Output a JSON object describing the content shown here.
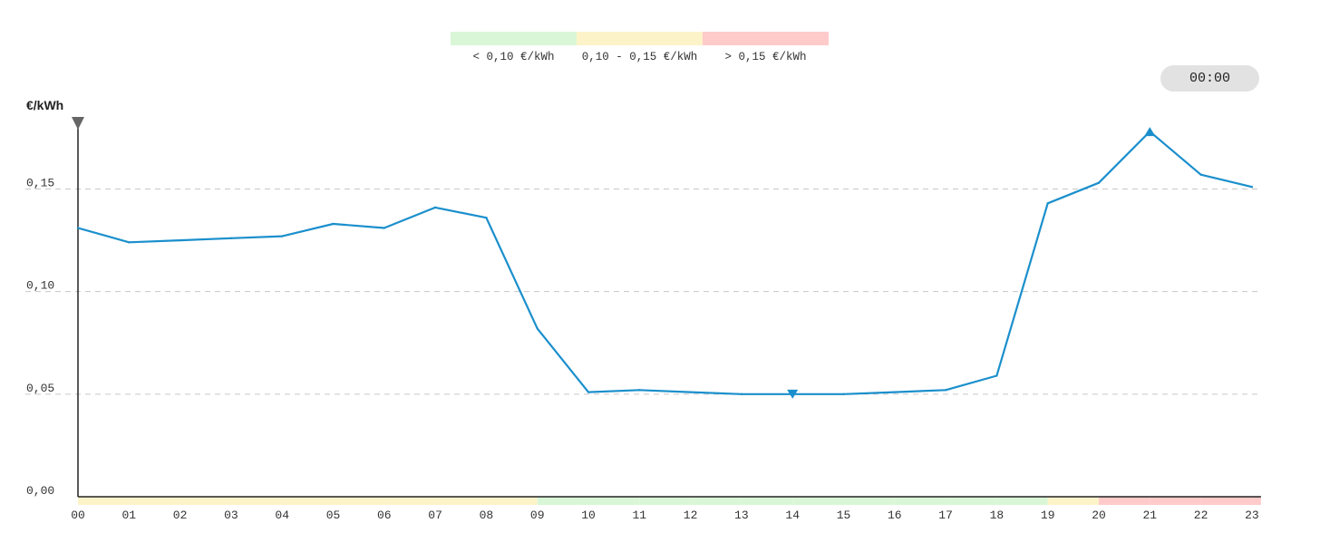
{
  "legend": [
    {
      "label": "< 0,10 €/kWh",
      "color": "#d9f7d6"
    },
    {
      "label": "0,10 - 0,15 €/kWh",
      "color": "#fdf3c9"
    },
    {
      "label": "> 0,15 €/kWh",
      "color": "#ffcaca"
    }
  ],
  "time_selector": {
    "value": "00:00"
  },
  "chart_data": {
    "type": "line",
    "title": "",
    "ylabel": "€/kWh",
    "xlabel": "",
    "ylim": [
      0,
      0.18
    ],
    "yticks": [
      0,
      0.05,
      0.1,
      0.15
    ],
    "ytick_labels": [
      "0,00",
      "0,05",
      "0,10",
      "0,15"
    ],
    "x": [
      "00",
      "01",
      "02",
      "03",
      "04",
      "05",
      "06",
      "07",
      "08",
      "09",
      "10",
      "11",
      "12",
      "13",
      "14",
      "15",
      "16",
      "17",
      "18",
      "19",
      "20",
      "21",
      "22",
      "23"
    ],
    "values": [
      0.131,
      0.124,
      0.125,
      0.126,
      0.127,
      0.133,
      0.131,
      0.141,
      0.136,
      0.082,
      0.051,
      0.052,
      0.051,
      0.05,
      0.05,
      0.05,
      0.051,
      0.052,
      0.059,
      0.143,
      0.153,
      0.178,
      0.157,
      0.151
    ],
    "min_marker": {
      "x": "14",
      "value": 0.05
    },
    "max_marker": {
      "x": "21",
      "value": 0.178
    },
    "current_marker": {
      "x": "00"
    },
    "band_colors": {
      "low": "#d9f7d6",
      "mid": "#fdf3c9",
      "high": "#ffcaca"
    },
    "thresholds": [
      0.1,
      0.15
    ],
    "line_color": "#1a8fcc",
    "grid": "dashed horizontal"
  }
}
